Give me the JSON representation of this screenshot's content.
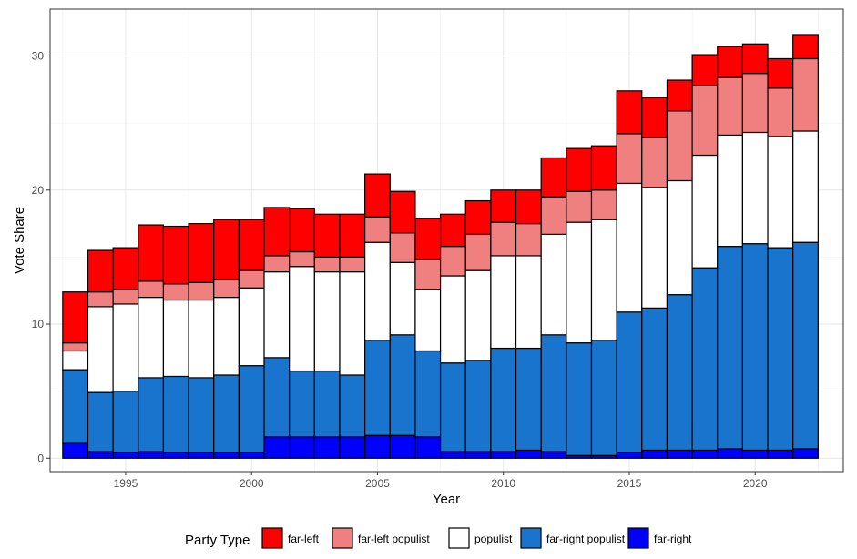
{
  "chart_data": {
    "type": "bar",
    "stacked": true,
    "xlabel": "Year",
    "ylabel": "Vote Share",
    "xlim": [
      1992,
      2023.5
    ],
    "ylim": [
      -1,
      33.5
    ],
    "x_ticks": [
      1995,
      2000,
      2005,
      2010,
      2015,
      2020
    ],
    "y_ticks": [
      0,
      10,
      20,
      30
    ],
    "grid": true,
    "legend_position": "bottom",
    "legend_title": "Party Type",
    "x": [
      1993,
      1994,
      1995,
      1996,
      1997,
      1998,
      1999,
      2000,
      2001,
      2002,
      2003,
      2004,
      2005,
      2006,
      2007,
      2008,
      2009,
      2010,
      2011,
      2012,
      2013,
      2014,
      2015,
      2016,
      2017,
      2018,
      2019,
      2020,
      2021,
      2022
    ],
    "series": [
      {
        "name": "far-right",
        "color": "#0000ff",
        "values": [
          1.1,
          0.5,
          0.4,
          0.5,
          0.4,
          0.4,
          0.4,
          0.4,
          1.6,
          1.6,
          1.6,
          1.6,
          1.7,
          1.7,
          1.6,
          0.5,
          0.5,
          0.5,
          0.6,
          0.5,
          0.2,
          0.2,
          0.4,
          0.6,
          0.6,
          0.6,
          0.7,
          0.6,
          0.6,
          0.7
        ]
      },
      {
        "name": "far-right populist",
        "color": "#1874cd",
        "values": [
          5.5,
          4.4,
          4.6,
          5.5,
          5.7,
          5.6,
          5.8,
          6.5,
          5.9,
          4.9,
          4.9,
          4.6,
          7.1,
          7.5,
          6.4,
          6.6,
          6.8,
          7.7,
          7.6,
          8.7,
          8.4,
          8.6,
          10.5,
          10.6,
          11.6,
          13.6,
          15.1,
          15.4,
          15.1,
          15.4
        ]
      },
      {
        "name": "populist",
        "color": "#ffffff",
        "values": [
          1.4,
          6.4,
          6.5,
          6.0,
          5.7,
          5.8,
          5.8,
          5.8,
          6.4,
          7.8,
          7.4,
          7.7,
          7.3,
          5.4,
          4.6,
          6.5,
          6.7,
          6.9,
          6.9,
          7.5,
          9.0,
          9.0,
          9.6,
          9.0,
          8.5,
          8.4,
          8.3,
          8.3,
          8.3,
          8.3
        ]
      },
      {
        "name": "far-left populist",
        "color": "#f08080",
        "values": [
          0.6,
          1.1,
          1.1,
          1.2,
          1.2,
          1.3,
          1.3,
          1.3,
          1.2,
          1.1,
          1.1,
          1.1,
          1.9,
          2.2,
          2.2,
          2.2,
          2.7,
          2.5,
          2.4,
          2.8,
          2.3,
          2.2,
          3.7,
          3.7,
          5.2,
          5.2,
          4.3,
          4.4,
          3.6,
          5.4
        ]
      },
      {
        "name": "far-left",
        "color": "#ff0000",
        "values": [
          3.8,
          3.1,
          3.1,
          4.2,
          4.3,
          4.4,
          4.5,
          3.8,
          3.6,
          3.2,
          3.2,
          3.2,
          3.2,
          3.1,
          3.1,
          2.4,
          2.5,
          2.4,
          2.5,
          2.9,
          3.2,
          3.3,
          3.2,
          3.0,
          2.3,
          2.3,
          2.3,
          2.2,
          2.2,
          1.8
        ]
      }
    ]
  }
}
